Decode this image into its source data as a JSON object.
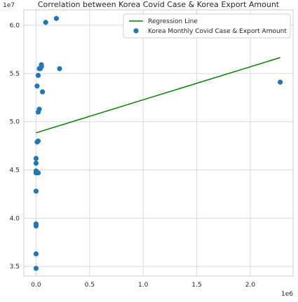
{
  "chart_data": {
    "type": "scatter",
    "title": "Correlation between Korea Covid Case & Korea Export Amount",
    "xlabel": "",
    "ylabel": "",
    "x_offset_label": "1e6",
    "y_offset_label": "1e7",
    "xlim": [
      -0.114,
      2.4
    ],
    "ylim": [
      3.4,
      6.16
    ],
    "x_ticks": [
      0.0,
      0.5,
      1.0,
      1.5,
      2.0
    ],
    "x_tick_labels": [
      "0.0",
      "0.5",
      "1.0",
      "1.5",
      "2.0"
    ],
    "y_ticks": [
      3.5,
      4.0,
      4.5,
      5.0,
      5.5,
      6.0
    ],
    "y_tick_labels": [
      "3.5",
      "4.0",
      "4.5",
      "5.0",
      "5.5",
      "6.0"
    ],
    "grid": true,
    "legend_position": "top-right",
    "series": [
      {
        "name": "Regression Line",
        "kind": "line",
        "color": "#008000",
        "x": [
          0.0,
          2.28
        ],
        "y": [
          4.885,
          5.665
        ]
      },
      {
        "name": "Korea Monthly Covid Case & Export Amount",
        "kind": "scatter",
        "color": "#1f77b4",
        "x": [
          0.0,
          0.0,
          0.0,
          0.0,
          0.0,
          0.0,
          0.0,
          0.0,
          0.0,
          0.01,
          0.01,
          0.02,
          0.02,
          0.02,
          0.03,
          0.02,
          0.03,
          0.05,
          0.05,
          0.06,
          0.04,
          0.09,
          0.19,
          0.22,
          2.28
        ],
        "y": [
          3.48,
          3.63,
          3.92,
          3.94,
          4.28,
          4.47,
          4.49,
          4.57,
          4.62,
          4.79,
          5.37,
          5.48,
          4.8,
          5.1,
          5.13,
          4.47,
          5.55,
          5.57,
          5.59,
          5.31,
          5.55,
          6.03,
          6.07,
          5.55,
          5.41
        ]
      }
    ]
  }
}
